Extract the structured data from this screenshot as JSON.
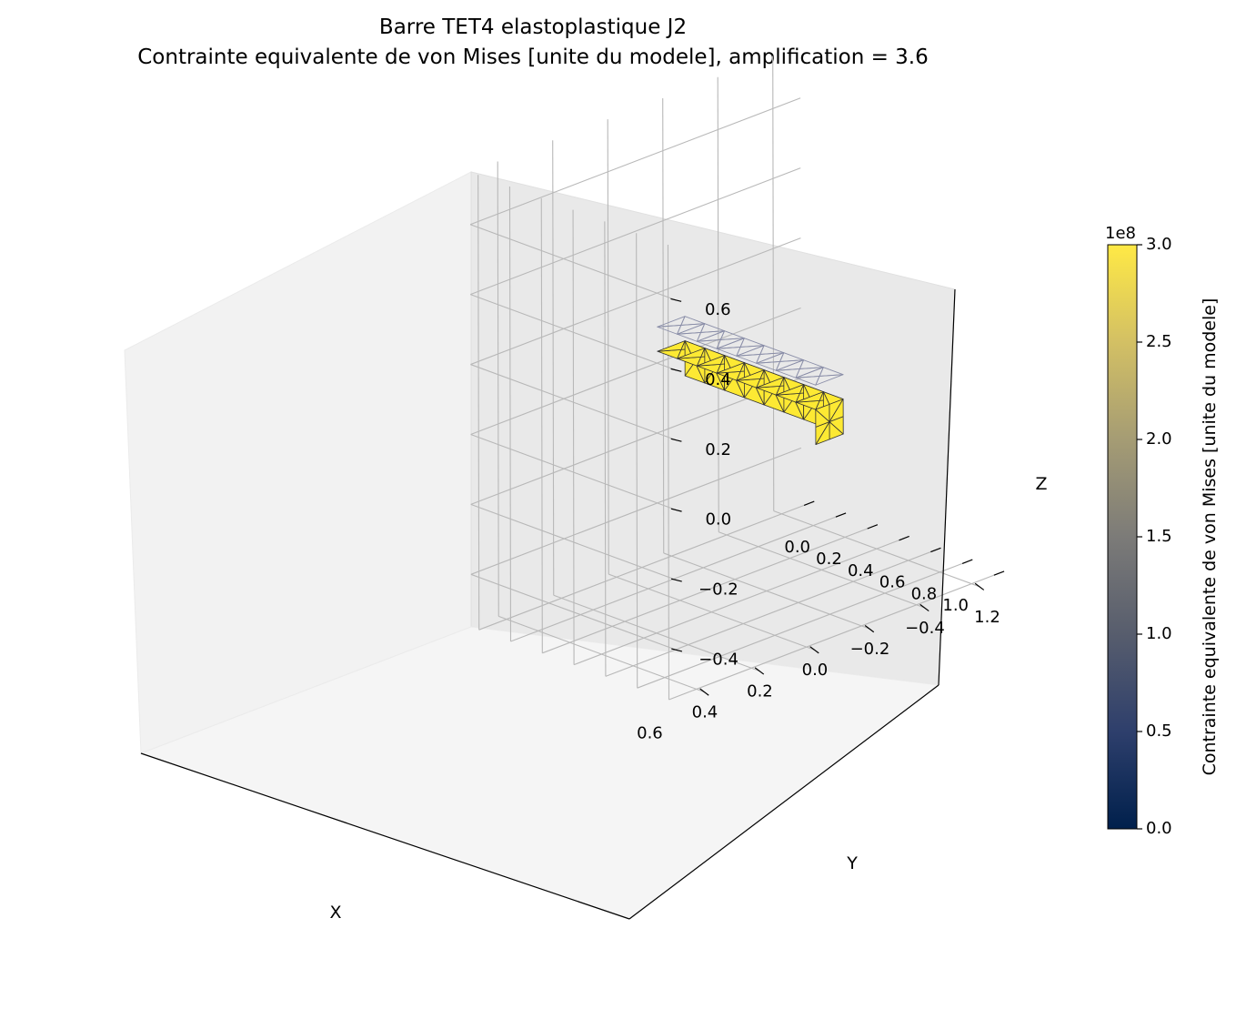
{
  "title": {
    "line1": "Barre TET4 elastoplastique J2",
    "line2": "Contrainte equivalente de von Mises [unite du modele], amplification = 3.6"
  },
  "chart_data": {
    "type": "3d-surface-mesh",
    "axes": {
      "x": {
        "label": "X",
        "ticks": [
          "0.0",
          "0.2",
          "0.4",
          "0.6",
          "0.8",
          "1.0",
          "1.2"
        ],
        "range": [
          -0.05,
          1.25
        ]
      },
      "y": {
        "label": "Y",
        "ticks": [
          "−0.4",
          "−0.2",
          "0.0",
          "0.2",
          "0.4",
          "0.6"
        ],
        "range": [
          -0.5,
          0.7
        ]
      },
      "z": {
        "label": "Z",
        "ticks": [
          "−0.4",
          "−0.2",
          "0.0",
          "0.2",
          "0.4",
          "0.6"
        ],
        "range": [
          -0.55,
          0.75
        ]
      }
    },
    "grid": true,
    "mesh": {
      "element": "TET4",
      "bar_extent": {
        "x": [
          0.0,
          1.0
        ],
        "y": [
          -0.05,
          0.05
        ],
        "z": [
          -0.05,
          0.05
        ]
      },
      "undeformed_wireframe": true,
      "face_color": "#fde933",
      "edge_color": "#333333"
    },
    "colorbar": {
      "label": "Contrainte equivalente de von Mises [unite du modele]",
      "multiplier": "1e8",
      "colormap": "cividis",
      "ticks": [
        "0.0",
        "0.5",
        "1.0",
        "1.5",
        "2.0",
        "2.5",
        "3.0"
      ],
      "range": [
        0.0,
        3.0
      ],
      "stops": [
        "#00204c",
        "#2e3f6c",
        "#575d6d",
        "#7c7b78",
        "#a59c74",
        "#d3c064",
        "#ffe945"
      ]
    }
  }
}
